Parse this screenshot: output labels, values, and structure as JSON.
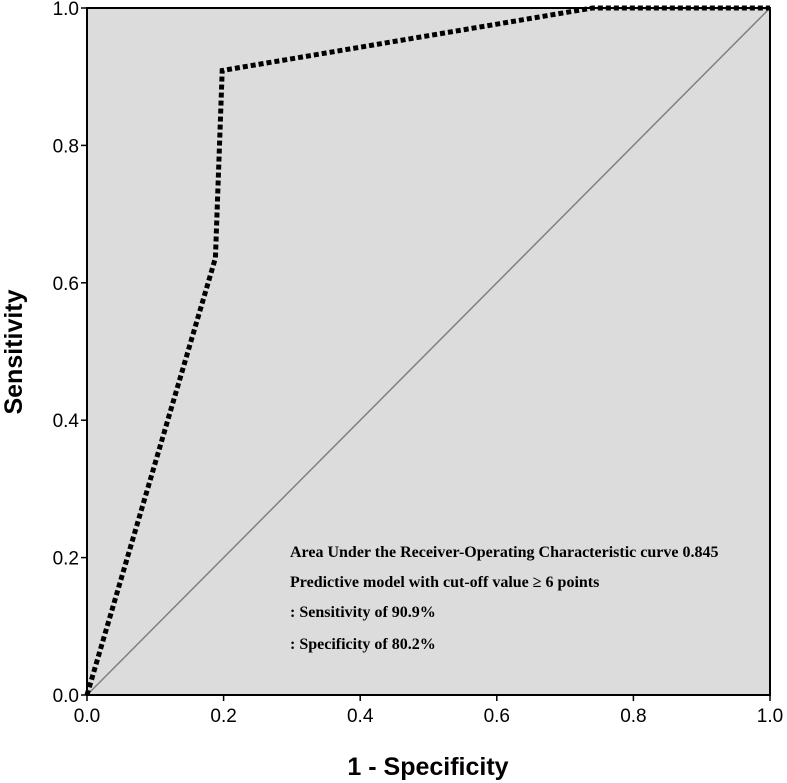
{
  "chart_data": {
    "type": "line",
    "title": "",
    "xlabel": "1 - Specificity",
    "ylabel": "Sensitivity",
    "xlim": [
      0.0,
      1.0
    ],
    "ylim": [
      0.0,
      1.0
    ],
    "xticks": [
      "0.0",
      "0.2",
      "0.4",
      "0.6",
      "0.8",
      "1.0"
    ],
    "yticks": [
      "0.0",
      "0.2",
      "0.4",
      "0.6",
      "0.8",
      "1.0"
    ],
    "grid": false,
    "background": "#dcdcdc",
    "series": [
      {
        "style": "dotted",
        "color": "#000000",
        "x": [
          0.0,
          0.188,
          0.198,
          0.74,
          1.0
        ],
        "y": [
          0.0,
          0.636,
          0.909,
          1.0,
          1.0
        ]
      },
      {
        "style": "solid",
        "color": "#808080",
        "x": [
          0.0,
          1.0
        ],
        "y": [
          0.0,
          1.0
        ]
      }
    ],
    "annotations": [
      "Area Under the Receiver-Operating Characteristic curve 0.845",
      "Predictive model with cut-off value ≥ 6 points",
      ": Sensitivity of 90.9%",
      ": Specificity of 80.2%"
    ]
  }
}
